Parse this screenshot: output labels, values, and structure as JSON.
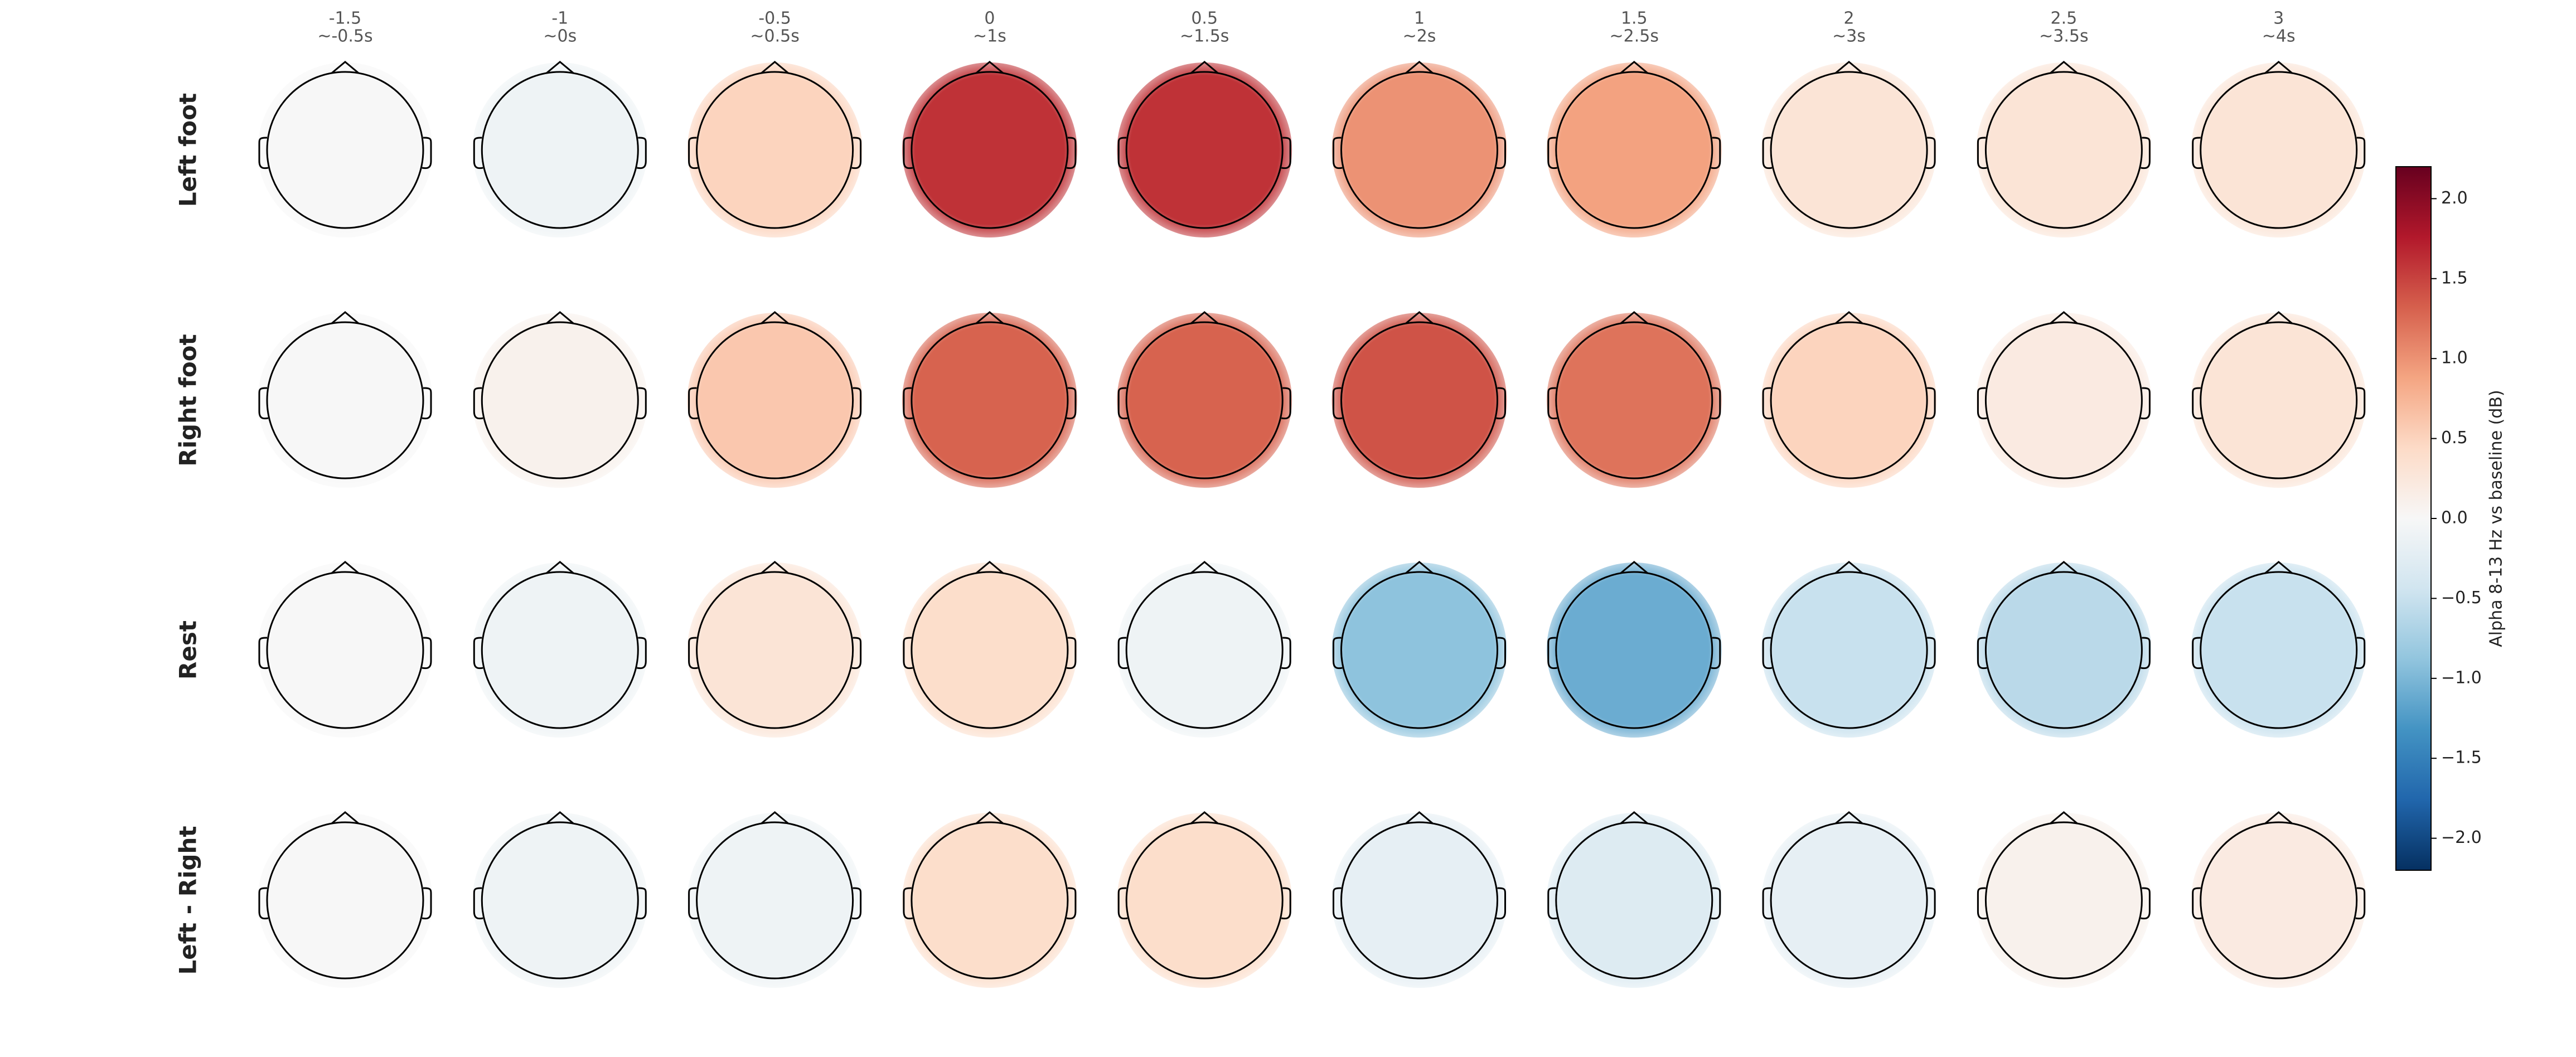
{
  "chart_data": {
    "type": "topomap",
    "colormap": "RdBu_r",
    "columns": [
      {
        "time": "-1.5",
        "label": "~-0.5s"
      },
      {
        "time": "-1",
        "label": "~0s"
      },
      {
        "time": "-0.5",
        "label": "~0.5s"
      },
      {
        "time": "0",
        "label": "~1s"
      },
      {
        "time": "0.5",
        "label": "~1.5s"
      },
      {
        "time": "1",
        "label": "~2s"
      },
      {
        "time": "1.5",
        "label": "~2.5s"
      },
      {
        "time": "2",
        "label": "~3s"
      },
      {
        "time": "2.5",
        "label": "~3.5s"
      },
      {
        "time": "3",
        "label": "~4s"
      }
    ],
    "rows": [
      "Left foot",
      "Right foot",
      "Rest",
      "Left - Right"
    ],
    "values": [
      [
        0,
        -0.1,
        0.5,
        1.6,
        1.6,
        1.0,
        0.9,
        0.3,
        0.3,
        0.3
      ],
      [
        0,
        0.1,
        0.6,
        1.3,
        1.3,
        1.4,
        1.2,
        0.5,
        0.2,
        0.3
      ],
      [
        0,
        -0.1,
        0.3,
        0.4,
        -0.1,
        -0.9,
        -1.1,
        -0.5,
        -0.6,
        -0.5
      ],
      [
        0,
        -0.1,
        -0.1,
        0.4,
        0.4,
        -0.2,
        -0.3,
        -0.2,
        0.1,
        0.2
      ]
    ],
    "colorbar_label": "Alpha 8-13 Hz vs baseline (dB)",
    "clim": [
      -2.2,
      2.2
    ],
    "cticks": [
      {
        "value": 2,
        "label": "2.0"
      },
      {
        "value": 1.5,
        "label": "1.5"
      },
      {
        "value": 1,
        "label": "1.0"
      },
      {
        "value": 0.5,
        "label": "0.5"
      },
      {
        "value": 0,
        "label": "0.0"
      },
      {
        "value": -0.5,
        "label": "−0.5"
      },
      {
        "value": -1,
        "label": "−1.0"
      },
      {
        "value": -1.5,
        "label": "−1.5"
      },
      {
        "value": -2,
        "label": "−2.0"
      }
    ]
  }
}
